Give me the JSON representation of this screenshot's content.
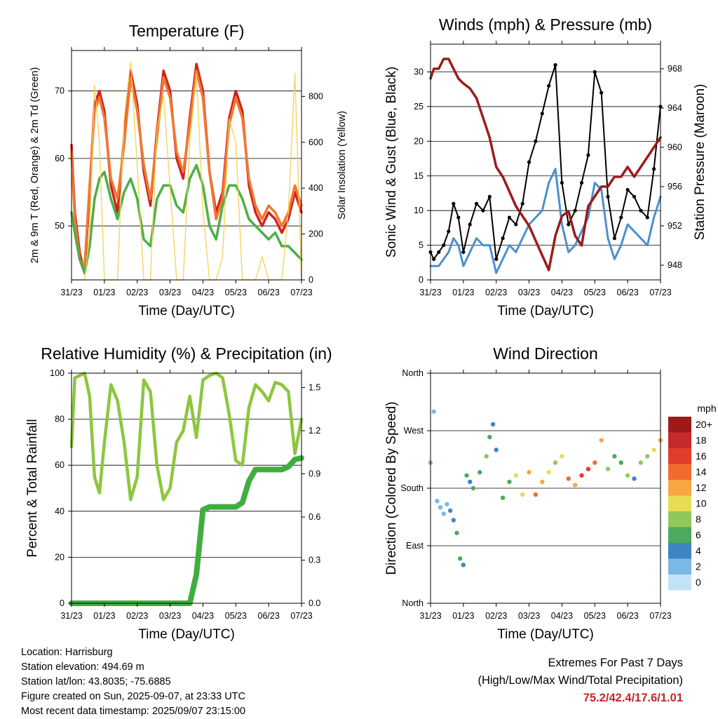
{
  "time_ticks": [
    "31/23",
    "01/23",
    "02/23",
    "03/23",
    "04/23",
    "05/23",
    "06/23",
    "07/23"
  ],
  "panels": {
    "temperature": {
      "title": "Temperature (F)",
      "ylabel_left": "2m & 9m T (Red, Orange) & 2m Td (Green)",
      "ylabel_right": "Solar Insolation (Yellow)",
      "xlabel": "Time (Day/UTC)"
    },
    "wind": {
      "title": "Winds (mph) & Pressure (mb)",
      "ylabel_left": "Sonic Wind & Gust (Blue, Black)",
      "ylabel_right": "Station Pressure (Maroon)",
      "xlabel": "Time (Day/UTC)"
    },
    "humidity": {
      "title": "Relative Humidity (%) & Precipitation (in)",
      "ylabel_left": "Percent & Total Rainfall",
      "xlabel": "Time (Day/UTC)"
    },
    "direction": {
      "title": "Wind Direction",
      "ylabel_left": "Direction (Colored By Speed)",
      "xlabel": "Time (Day/UTC)",
      "colorbar_title": "mph",
      "colorbar_labels": [
        "20+",
        "18",
        "16",
        "14",
        "12",
        "10",
        "8",
        "6",
        "4",
        "2",
        "0"
      ],
      "colorbar_colors": [
        "#9e1a1a",
        "#c62a2a",
        "#e13c2c",
        "#f26a2f",
        "#f9a544",
        "#e8dc55",
        "#92c75a",
        "#4caa5e",
        "#3d86c6",
        "#7bb8e4",
        "#c2e2f6"
      ]
    }
  },
  "chart_data": [
    {
      "type": "line",
      "title": "Temperature (F)",
      "xlabel": "Time (Day/UTC)",
      "ylabel": "2m & 9m T (Red, Orange) & 2m Td (Green)",
      "y2label": "Solar Insolation (Yellow)",
      "x": [
        0,
        0.1,
        0.25,
        0.4,
        0.55,
        0.7,
        0.85,
        1.0,
        1.2,
        1.4,
        1.6,
        1.8,
        2.0,
        2.2,
        2.4,
        2.6,
        2.8,
        3.0,
        3.2,
        3.4,
        3.6,
        3.8,
        4.0,
        4.2,
        4.4,
        4.6,
        4.8,
        5.0,
        5.2,
        5.4,
        5.6,
        5.8,
        6.0,
        6.2,
        6.4,
        6.6,
        6.8,
        7.0
      ],
      "ylim": [
        42,
        76
      ],
      "y2lim": [
        0,
        1000
      ],
      "series": [
        {
          "name": "2m T",
          "color": "#d42020",
          "values": [
            62,
            52,
            46,
            43,
            55,
            68,
            70,
            67,
            56,
            52,
            63,
            73,
            68,
            58,
            53,
            64,
            73,
            70,
            60,
            57,
            66,
            74,
            70,
            58,
            52,
            55,
            66,
            70,
            67,
            56,
            52,
            50,
            52,
            51,
            49,
            51,
            55,
            52
          ]
        },
        {
          "name": "9m T",
          "color": "#f07830",
          "values": [
            61,
            51,
            45,
            44,
            56,
            67,
            69,
            66,
            57,
            54,
            62,
            72,
            67,
            59,
            54,
            63,
            72,
            69,
            61,
            58,
            65,
            73,
            69,
            58,
            51,
            54,
            65,
            69,
            66,
            57,
            53,
            51,
            53,
            52,
            50,
            52,
            56,
            53
          ]
        },
        {
          "name": "2m Td",
          "color": "#4caf45",
          "values": [
            52,
            49,
            45,
            43,
            47,
            54,
            57,
            58,
            54,
            51,
            55,
            57,
            54,
            48,
            47,
            54,
            56,
            56,
            53,
            52,
            57,
            59,
            56,
            50,
            48,
            53,
            56,
            56,
            54,
            51,
            50,
            49,
            48,
            49,
            47,
            47,
            46,
            45
          ]
        },
        {
          "name": "Solar Insolation",
          "color": "#f3d04a",
          "axis": "right",
          "values": [
            0,
            0,
            0,
            0,
            200,
            850,
            600,
            0,
            0,
            0,
            700,
            950,
            500,
            0,
            0,
            650,
            800,
            400,
            0,
            0,
            600,
            900,
            300,
            0,
            0,
            100,
            700,
            600,
            0,
            0,
            0,
            100,
            0,
            0,
            0,
            300,
            900,
            0
          ]
        }
      ]
    },
    {
      "type": "line",
      "title": "Winds (mph) & Pressure (mb)",
      "xlabel": "Time (Day/UTC)",
      "ylabel": "Sonic Wind & Gust (Blue, Black)",
      "y2label": "Station Pressure (Maroon)",
      "x": [
        0,
        0.1,
        0.25,
        0.4,
        0.55,
        0.7,
        0.85,
        1.0,
        1.2,
        1.4,
        1.6,
        1.8,
        2.0,
        2.2,
        2.4,
        2.6,
        2.8,
        3.0,
        3.2,
        3.4,
        3.6,
        3.8,
        4.0,
        4.2,
        4.4,
        4.6,
        4.8,
        5.0,
        5.2,
        5.4,
        5.6,
        5.8,
        6.0,
        6.2,
        6.4,
        6.6,
        6.8,
        7.0
      ],
      "ylim": [
        0,
        34
      ],
      "y2lim": [
        946.5,
        970.5
      ],
      "series": [
        {
          "name": "Sonic Wind",
          "color": "#4a90d0",
          "values": [
            2,
            2,
            2,
            3,
            4,
            6,
            5,
            2,
            4,
            6,
            5,
            5,
            1,
            3,
            5,
            4,
            6,
            8,
            9,
            10,
            14,
            16,
            8,
            4,
            5,
            7,
            9,
            14,
            13,
            6,
            3,
            5,
            8,
            7,
            6,
            5,
            9,
            12
          ]
        },
        {
          "name": "Gust",
          "color": "#000000",
          "values": [
            4,
            3,
            4,
            5,
            7,
            11,
            9,
            4,
            8,
            11,
            10,
            12,
            3,
            6,
            9,
            8,
            11,
            17,
            20,
            24,
            28,
            31,
            14,
            8,
            10,
            14,
            18,
            30,
            27,
            12,
            6,
            9,
            13,
            12,
            10,
            9,
            16,
            25
          ]
        },
        {
          "name": "Station Pressure",
          "color": "#9b1c1c",
          "axis": "right",
          "values": [
            967,
            968,
            968,
            969,
            969,
            968,
            967,
            966.5,
            966,
            965,
            963,
            961,
            958,
            957,
            955.5,
            954,
            953,
            952,
            950.5,
            949,
            947.5,
            951,
            953,
            953.5,
            951,
            950,
            954,
            955,
            956,
            956,
            957,
            957,
            958,
            957,
            958,
            959,
            960,
            961
          ]
        }
      ]
    },
    {
      "type": "line",
      "title": "Relative Humidity (%) & Precipitation (in)",
      "xlabel": "Time (Day/UTC)",
      "ylabel": "Percent & Total Rainfall",
      "x": [
        0,
        0.1,
        0.25,
        0.4,
        0.55,
        0.7,
        0.85,
        1.0,
        1.2,
        1.4,
        1.6,
        1.8,
        2.0,
        2.2,
        2.4,
        2.6,
        2.8,
        3.0,
        3.2,
        3.4,
        3.6,
        3.8,
        4.0,
        4.2,
        4.4,
        4.6,
        4.8,
        5.0,
        5.2,
        5.4,
        5.6,
        5.8,
        6.0,
        6.2,
        6.4,
        6.6,
        6.8,
        7.0
      ],
      "ylim": [
        0,
        100
      ],
      "y2lim": [
        0,
        1.6
      ],
      "series": [
        {
          "name": "Relative Humidity",
          "color": "#8dc63f",
          "values": [
            68,
            98,
            99,
            100,
            90,
            55,
            48,
            70,
            95,
            88,
            70,
            45,
            55,
            97,
            92,
            60,
            45,
            50,
            70,
            75,
            90,
            72,
            97,
            99,
            100,
            98,
            82,
            62,
            60,
            85,
            95,
            92,
            88,
            96,
            95,
            92,
            65,
            80
          ]
        },
        {
          "name": "Total Rainfall",
          "color": "#3fae3f",
          "axis": "right",
          "values": [
            0,
            0,
            0,
            0,
            0,
            0,
            0,
            0,
            0,
            0,
            0,
            0,
            0,
            0,
            0,
            0,
            0,
            0,
            0,
            0,
            0,
            0.2,
            0.65,
            0.67,
            0.67,
            0.67,
            0.67,
            0.67,
            0.7,
            0.85,
            0.93,
            0.93,
            0.93,
            0.93,
            0.93,
            0.95,
            1.0,
            1.01
          ]
        }
      ]
    },
    {
      "type": "scatter",
      "title": "Wind Direction",
      "xlabel": "Time (Day/UTC)",
      "ylabel": "Direction (Colored By Speed)",
      "y_tick_labels": [
        "North",
        "East",
        "South",
        "West",
        "North"
      ],
      "ylim": [
        0,
        360
      ],
      "x": [
        0,
        0.1,
        0.2,
        0.3,
        0.4,
        0.5,
        0.6,
        0.7,
        0.8,
        0.9,
        1.0,
        1.1,
        1.2,
        1.3,
        1.5,
        1.7,
        1.8,
        1.9,
        2.0,
        2.2,
        2.4,
        2.6,
        2.8,
        3.0,
        3.2,
        3.4,
        3.6,
        3.8,
        4.0,
        4.2,
        4.4,
        4.6,
        4.8,
        5.0,
        5.2,
        5.4,
        5.6,
        5.8,
        6.0,
        6.2,
        6.4,
        6.6,
        6.8,
        7.0
      ],
      "values": [
        220,
        300,
        160,
        150,
        140,
        155,
        145,
        130,
        110,
        70,
        60,
        200,
        190,
        180,
        205,
        230,
        260,
        280,
        240,
        165,
        190,
        200,
        170,
        205,
        170,
        190,
        205,
        220,
        230,
        195,
        185,
        200,
        210,
        220,
        255,
        210,
        230,
        220,
        200,
        195,
        220,
        230,
        240,
        255
      ],
      "speed": [
        2,
        1,
        2,
        2,
        2,
        2,
        3,
        4,
        6,
        5,
        4,
        5,
        4,
        5,
        6,
        7,
        6,
        4,
        3,
        5,
        6,
        10,
        9,
        12,
        14,
        12,
        10,
        8,
        9,
        14,
        12,
        15,
        16,
        14,
        12,
        8,
        5,
        6,
        8,
        4,
        7,
        8,
        10,
        12
      ]
    }
  ],
  "info": {
    "location": "Location: Harrisburg",
    "elevation": "Station elevation: 494.69 m",
    "latlon": "Station lat/lon: 43.8035; -75.6885",
    "created": "Figure created on Sun, 2025-09-07, at 23:33 UTC",
    "recent": "Most recent data timestamp: 2025/09/07 23:15:00"
  },
  "extremes": {
    "line1": "Extremes For Past 7 Days",
    "line2": "(High/Low/Max Wind/Total Precipitation)",
    "values": "75.2/42.4/17.6/1.01"
  }
}
